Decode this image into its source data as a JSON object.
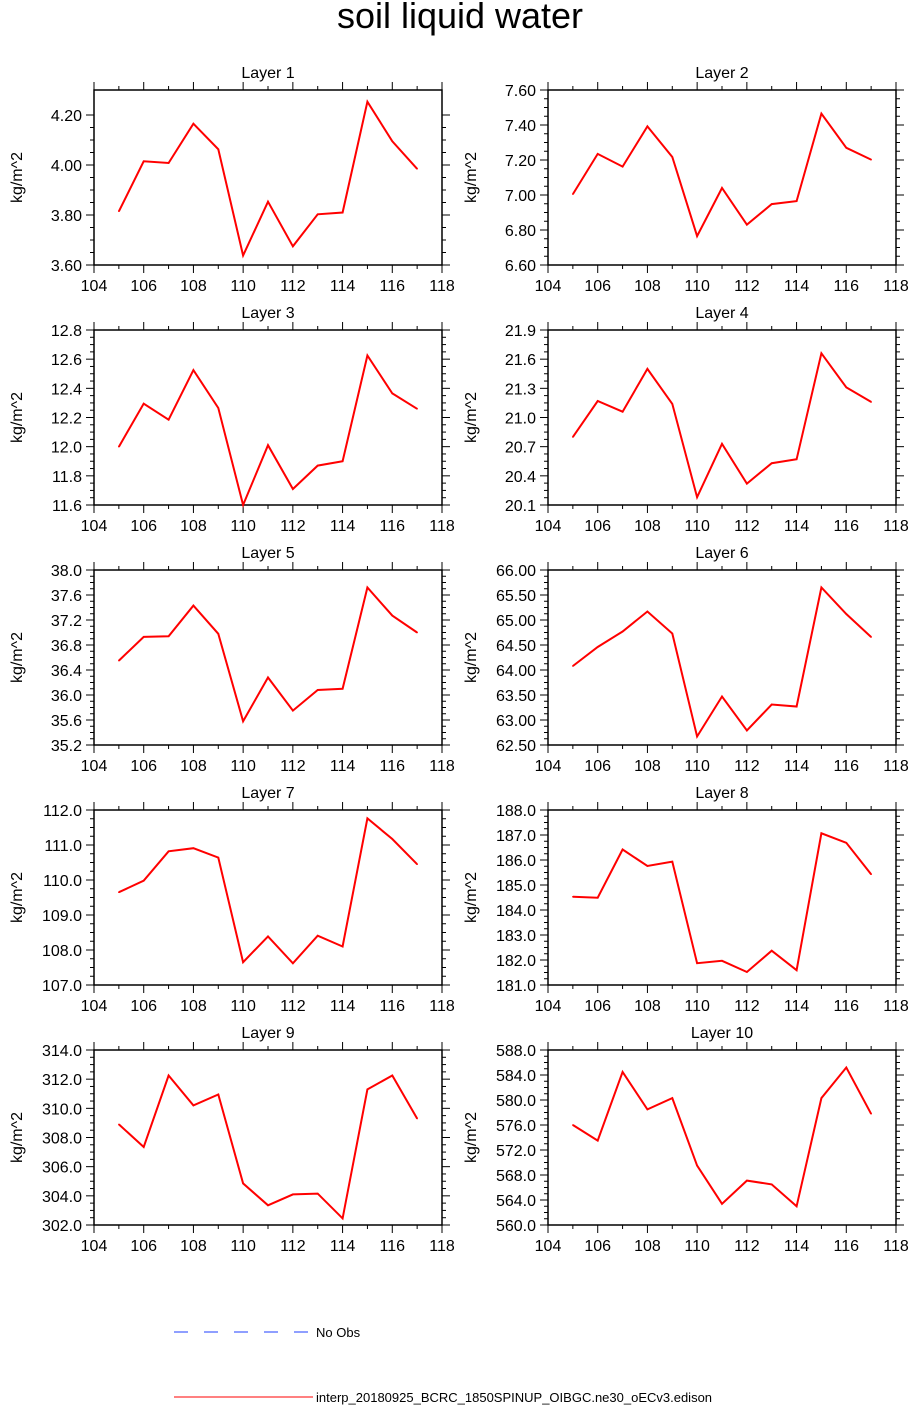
{
  "figure": {
    "title": "soil liquid water",
    "legend": [
      {
        "label": "No Obs",
        "color": "#1f3fff",
        "dash": true
      },
      {
        "label": "interp_20180925_BCRC_1850SPINUP_OIBGC.ne30_oECv3.edison",
        "color": "#ff0000",
        "dash": false
      }
    ]
  },
  "chart_data": [
    {
      "type": "line",
      "title": "Layer 1",
      "xlabel": "",
      "ylabel": "kg/m^2",
      "xlim": [
        104,
        118
      ],
      "ylim": [
        3.6,
        4.3
      ],
      "xticks": [
        104,
        106,
        108,
        110,
        112,
        114,
        116,
        118
      ],
      "yticks": [
        3.6,
        3.8,
        4.0,
        4.2
      ],
      "ydecimals": 2,
      "x": [
        105,
        106,
        107,
        108,
        109,
        110,
        111,
        112,
        113,
        114,
        115,
        116,
        117
      ],
      "series": [
        {
          "values": [
            3.815,
            4.015,
            4.008,
            4.165,
            4.063,
            3.638,
            3.853,
            3.675,
            3.803,
            3.81,
            4.253,
            4.095,
            3.985
          ],
          "color": "#ff0000"
        }
      ]
    },
    {
      "type": "line",
      "title": "Layer 2",
      "xlabel": "",
      "ylabel": "kg/m^2",
      "xlim": [
        104,
        118
      ],
      "ylim": [
        6.6,
        7.6
      ],
      "xticks": [
        104,
        106,
        108,
        110,
        112,
        114,
        116,
        118
      ],
      "yticks": [
        6.6,
        6.8,
        7.0,
        7.2,
        7.4,
        7.6
      ],
      "ydecimals": 2,
      "x": [
        105,
        106,
        107,
        108,
        109,
        110,
        111,
        112,
        113,
        114,
        115,
        116,
        117
      ],
      "series": [
        {
          "values": [
            7.005,
            7.235,
            7.162,
            7.392,
            7.217,
            6.765,
            7.04,
            6.83,
            6.948,
            6.965,
            7.465,
            7.27,
            7.202
          ],
          "color": "#ff0000"
        }
      ]
    },
    {
      "type": "line",
      "title": "Layer 3",
      "xlabel": "",
      "ylabel": "kg/m^2",
      "xlim": [
        104,
        118
      ],
      "ylim": [
        11.6,
        12.8
      ],
      "xticks": [
        104,
        106,
        108,
        110,
        112,
        114,
        116,
        118
      ],
      "yticks": [
        11.6,
        11.8,
        12.0,
        12.2,
        12.4,
        12.6,
        12.8
      ],
      "ydecimals": 1,
      "x": [
        105,
        106,
        107,
        108,
        109,
        110,
        111,
        112,
        113,
        114,
        115,
        116,
        117
      ],
      "series": [
        {
          "values": [
            12.0,
            12.295,
            12.185,
            12.525,
            12.265,
            11.6,
            12.01,
            11.71,
            11.87,
            11.9,
            12.625,
            12.365,
            12.26
          ],
          "color": "#ff0000"
        }
      ]
    },
    {
      "type": "line",
      "title": "Layer 4",
      "xlabel": "",
      "ylabel": "kg/m^2",
      "xlim": [
        104,
        118
      ],
      "ylim": [
        20.1,
        21.9
      ],
      "xticks": [
        104,
        106,
        108,
        110,
        112,
        114,
        116,
        118
      ],
      "yticks": [
        20.1,
        20.4,
        20.7,
        21.0,
        21.3,
        21.6,
        21.9
      ],
      "ydecimals": 1,
      "x": [
        105,
        106,
        107,
        108,
        109,
        110,
        111,
        112,
        113,
        114,
        115,
        116,
        117
      ],
      "series": [
        {
          "values": [
            20.8,
            21.17,
            21.06,
            21.5,
            21.14,
            20.18,
            20.73,
            20.32,
            20.53,
            20.57,
            21.66,
            21.31,
            21.16
          ],
          "color": "#ff0000"
        }
      ]
    },
    {
      "type": "line",
      "title": "Layer 5",
      "xlabel": "",
      "ylabel": "kg/m^2",
      "xlim": [
        104,
        118
      ],
      "ylim": [
        35.2,
        38.0
      ],
      "xticks": [
        104,
        106,
        108,
        110,
        112,
        114,
        116,
        118
      ],
      "yticks": [
        35.2,
        35.6,
        36.0,
        36.4,
        36.8,
        37.2,
        37.6,
        38.0
      ],
      "ydecimals": 1,
      "x": [
        105,
        106,
        107,
        108,
        109,
        110,
        111,
        112,
        113,
        114,
        115,
        116,
        117
      ],
      "series": [
        {
          "values": [
            36.55,
            36.93,
            36.94,
            37.43,
            36.98,
            35.58,
            36.28,
            35.75,
            36.08,
            36.1,
            37.72,
            37.27,
            37.0
          ],
          "color": "#ff0000"
        }
      ]
    },
    {
      "type": "line",
      "title": "Layer 6",
      "xlabel": "",
      "ylabel": "kg/m^2",
      "xlim": [
        104,
        118
      ],
      "ylim": [
        62.5,
        66.0
      ],
      "xticks": [
        104,
        106,
        108,
        110,
        112,
        114,
        116,
        118
      ],
      "yticks": [
        62.5,
        63.0,
        63.5,
        64.0,
        64.5,
        65.0,
        65.5,
        66.0
      ],
      "ydecimals": 2,
      "x": [
        105,
        106,
        107,
        108,
        109,
        110,
        111,
        112,
        113,
        114,
        115,
        116,
        117
      ],
      "series": [
        {
          "values": [
            64.08,
            64.46,
            64.77,
            65.17,
            64.73,
            62.67,
            63.47,
            62.79,
            63.31,
            63.27,
            65.65,
            65.12,
            64.66
          ],
          "color": "#ff0000"
        }
      ]
    },
    {
      "type": "line",
      "title": "Layer 7",
      "xlabel": "",
      "ylabel": "kg/m^2",
      "xlim": [
        104,
        118
      ],
      "ylim": [
        107.0,
        112.0
      ],
      "xticks": [
        104,
        106,
        108,
        110,
        112,
        114,
        116,
        118
      ],
      "yticks": [
        107,
        108,
        109,
        110,
        111,
        112
      ],
      "ydecimals": 1,
      "x": [
        105,
        106,
        107,
        108,
        109,
        110,
        111,
        112,
        113,
        114,
        115,
        116,
        117
      ],
      "series": [
        {
          "values": [
            109.65,
            109.98,
            110.82,
            110.91,
            110.64,
            107.65,
            108.39,
            107.62,
            108.41,
            108.1,
            111.76,
            111.17,
            110.45
          ],
          "color": "#ff0000"
        }
      ]
    },
    {
      "type": "line",
      "title": "Layer 8",
      "xlabel": "",
      "ylabel": "kg/m^2",
      "xlim": [
        104,
        118
      ],
      "ylim": [
        181.0,
        188.0
      ],
      "xticks": [
        104,
        106,
        108,
        110,
        112,
        114,
        116,
        118
      ],
      "yticks": [
        181,
        182,
        183,
        184,
        185,
        186,
        187,
        188
      ],
      "ydecimals": 1,
      "x": [
        105,
        106,
        107,
        108,
        109,
        110,
        111,
        112,
        113,
        114,
        115,
        116,
        117
      ],
      "series": [
        {
          "values": [
            184.53,
            184.49,
            186.42,
            185.76,
            185.93,
            181.87,
            181.97,
            181.52,
            182.37,
            181.59,
            187.07,
            186.69,
            185.43
          ],
          "color": "#ff0000"
        }
      ]
    },
    {
      "type": "line",
      "title": "Layer 9",
      "xlabel": "",
      "ylabel": "kg/m^2",
      "xlim": [
        104,
        118
      ],
      "ylim": [
        302.0,
        314.0
      ],
      "xticks": [
        104,
        106,
        108,
        110,
        112,
        114,
        116,
        118
      ],
      "yticks": [
        302,
        304,
        306,
        308,
        310,
        312,
        314
      ],
      "ydecimals": 1,
      "x": [
        105,
        106,
        107,
        108,
        109,
        110,
        111,
        112,
        113,
        114,
        115,
        116,
        117
      ],
      "series": [
        {
          "values": [
            308.9,
            307.35,
            312.25,
            310.2,
            310.95,
            304.85,
            303.35,
            304.1,
            304.15,
            302.45,
            311.3,
            312.25,
            309.3
          ],
          "color": "#ff0000"
        }
      ]
    },
    {
      "type": "line",
      "title": "Layer 10",
      "xlabel": "",
      "ylabel": "kg/m^2",
      "xlim": [
        104,
        118
      ],
      "ylim": [
        560.0,
        588.0
      ],
      "xticks": [
        104,
        106,
        108,
        110,
        112,
        114,
        116,
        118
      ],
      "yticks": [
        560,
        564,
        568,
        572,
        576,
        580,
        584,
        588
      ],
      "ydecimals": 1,
      "x": [
        105,
        106,
        107,
        108,
        109,
        110,
        111,
        112,
        113,
        114,
        115,
        116,
        117
      ],
      "series": [
        {
          "values": [
            576.0,
            573.5,
            584.5,
            578.5,
            580.3,
            569.5,
            563.4,
            567.1,
            566.5,
            563.0,
            580.3,
            585.2,
            577.8
          ],
          "color": "#ff0000"
        }
      ]
    }
  ]
}
